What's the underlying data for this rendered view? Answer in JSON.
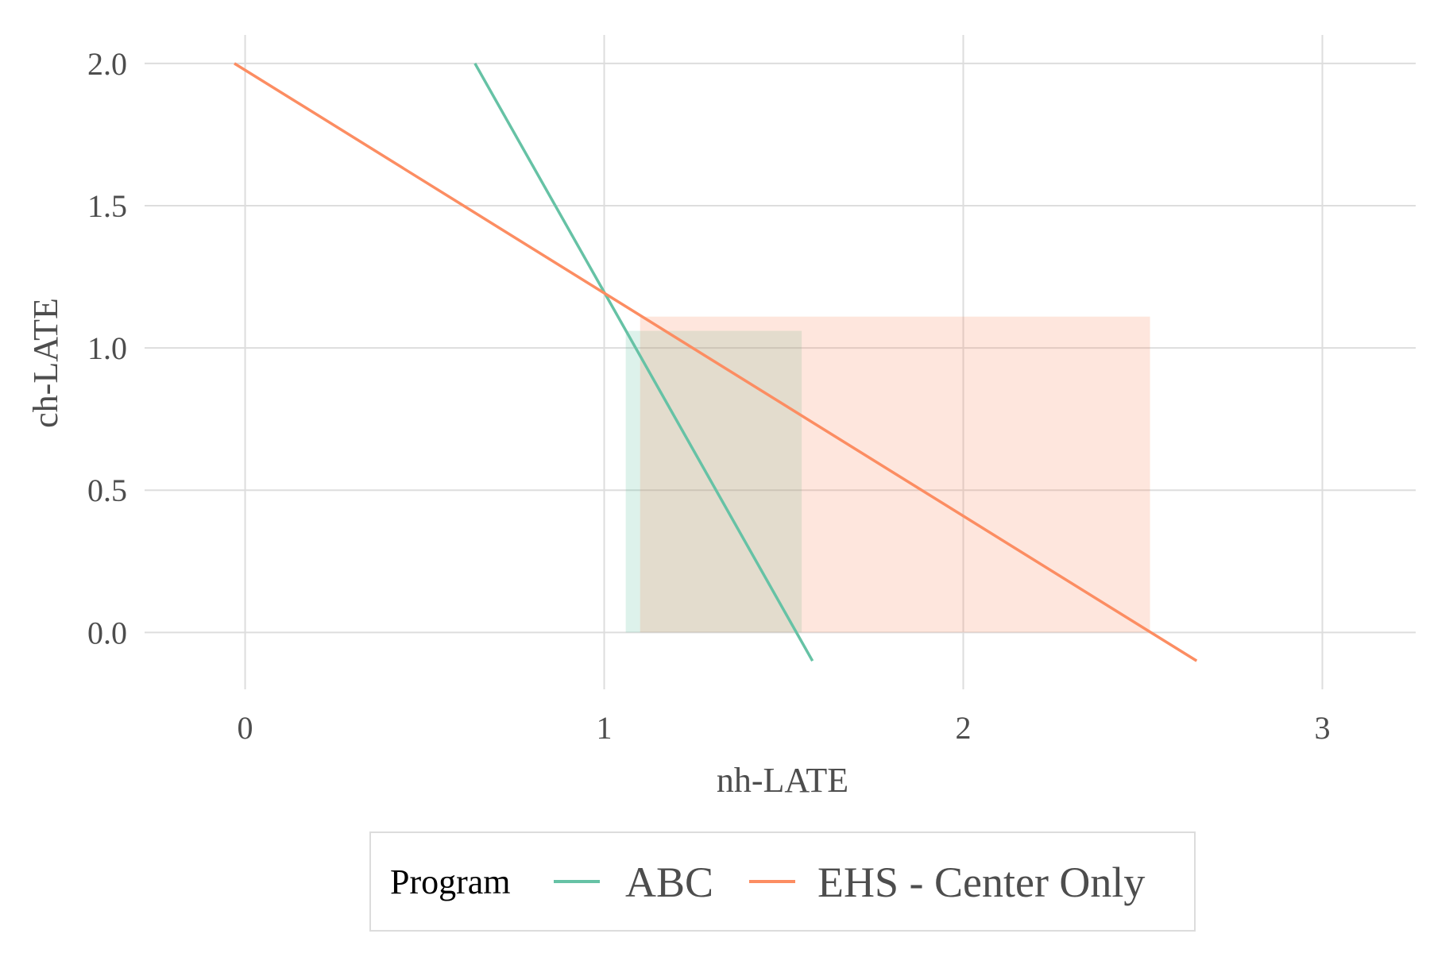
{
  "chart_data": {
    "type": "line",
    "xlabel": "nh-LATE",
    "ylabel": "ch-LATE",
    "xlim": [
      -0.28,
      3.26
    ],
    "ylim": [
      -0.2,
      2.1
    ],
    "x_ticks": [
      0,
      1,
      2,
      3
    ],
    "x_tick_labels": [
      "0",
      "1",
      "2",
      "3"
    ],
    "y_ticks": [
      0.0,
      0.5,
      1.0,
      1.5,
      2.0
    ],
    "y_tick_labels": [
      "0.0",
      "0.5",
      "1.0",
      "1.5",
      "2.0"
    ],
    "grid": true,
    "legend": {
      "title": "Program",
      "position": "bottom",
      "entries": [
        "ABC",
        "EHS - Center Only"
      ]
    },
    "series": [
      {
        "name": "ABC",
        "color": "#66c2a5",
        "line": {
          "x": [
            0.64,
            1.58
          ],
          "y": [
            2.0,
            -0.1
          ]
        },
        "region": {
          "x": [
            1.06,
            1.55
          ],
          "y": [
            0.0,
            1.06
          ]
        }
      },
      {
        "name": "EHS - Center Only",
        "color": "#fc8d62",
        "line": {
          "x": [
            -0.03,
            2.65
          ],
          "y": [
            2.0,
            -0.1
          ]
        },
        "region": {
          "x": [
            1.1,
            2.52
          ],
          "y": [
            0.0,
            1.11
          ]
        }
      }
    ]
  }
}
